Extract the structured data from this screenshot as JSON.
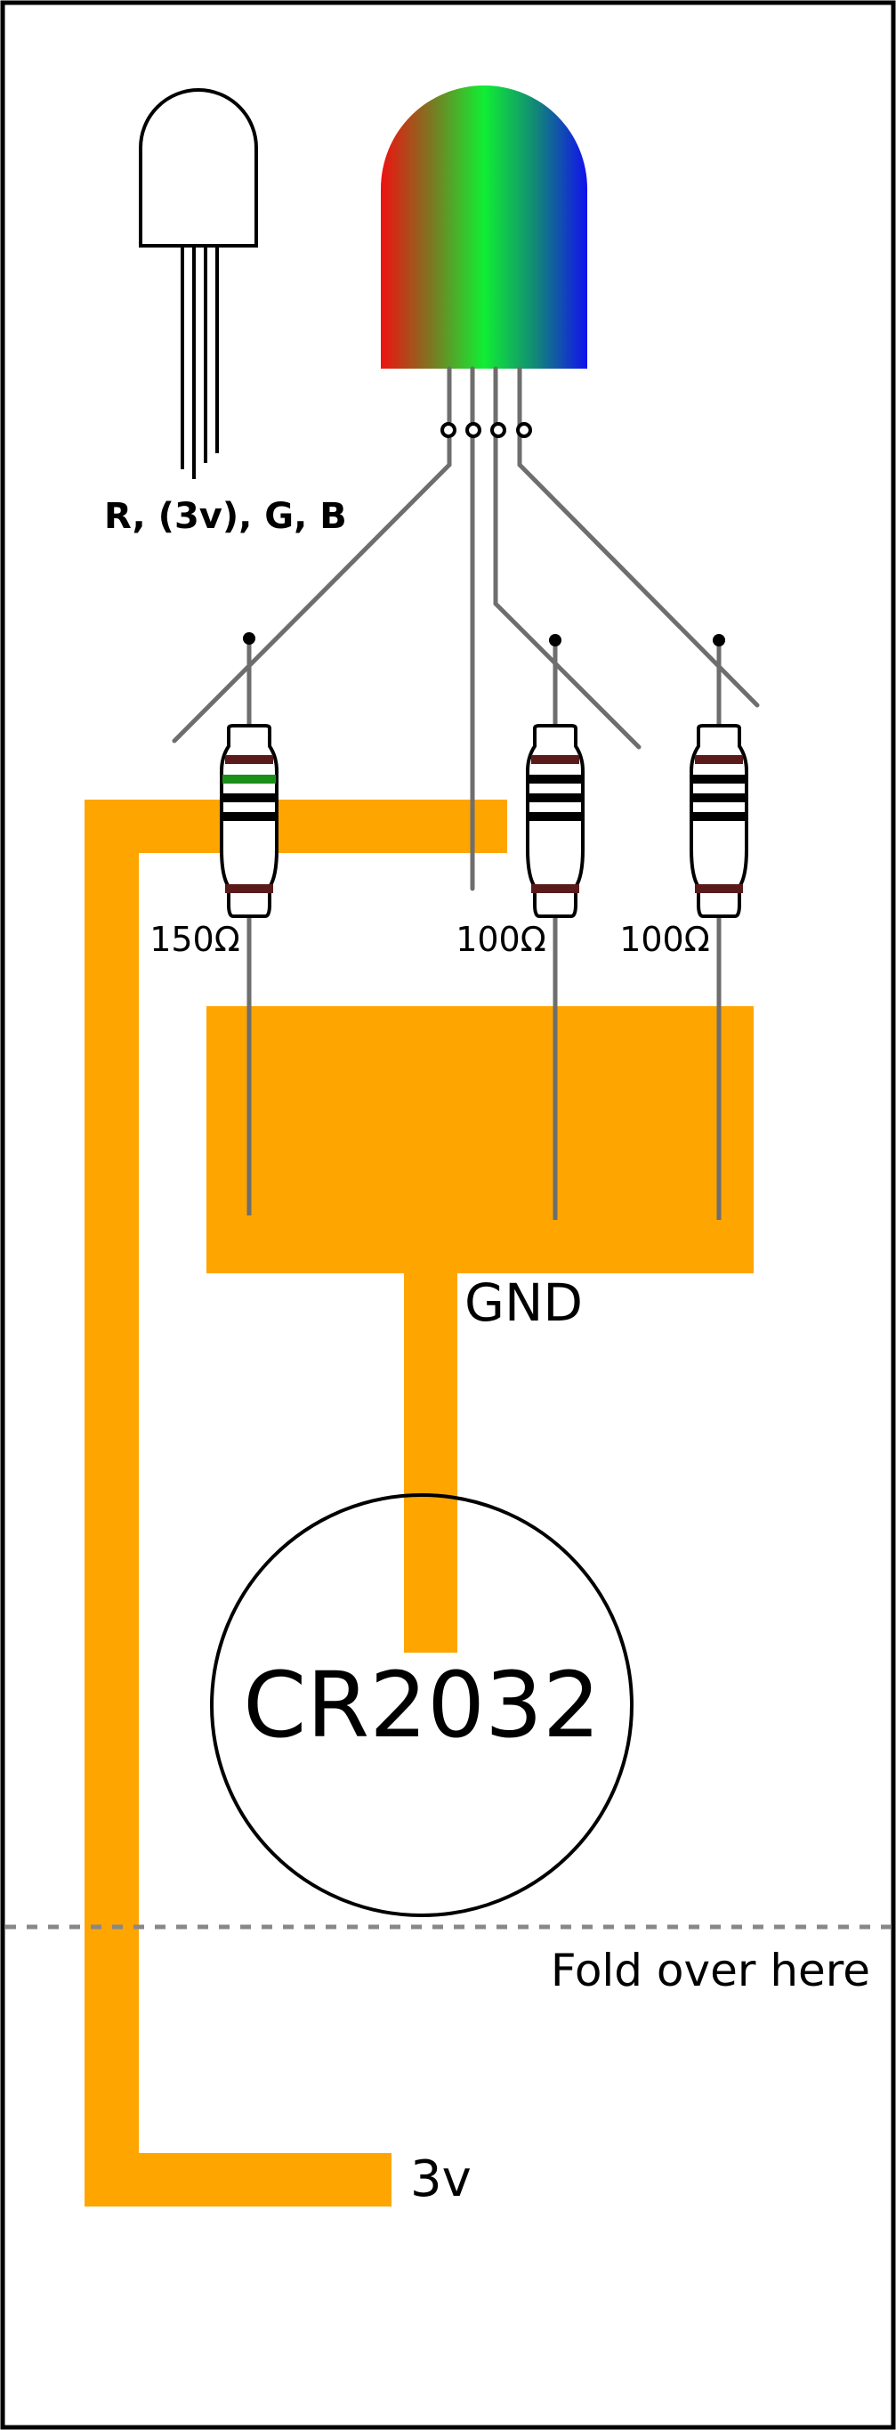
{
  "led_pin_label": "R, (3v), G, B",
  "resistors": [
    {
      "label": "150Ω",
      "bands": [
        "#5a1a1a",
        "#1a8f1a",
        "#000000",
        "#000000",
        "#5a1a1a"
      ]
    },
    {
      "label": "100Ω",
      "bands": [
        "#5a1a1a",
        "#000000",
        "#000000",
        "#000000",
        "#5a1a1a"
      ]
    },
    {
      "label": "100Ω",
      "bands": [
        "#5a1a1a",
        "#000000",
        "#000000",
        "#000000",
        "#5a1a1a"
      ]
    }
  ],
  "gnd_label": "GND",
  "battery_label": "CR2032",
  "fold_label": "Fold over here",
  "vcc_label": "3v",
  "colors": {
    "copper_tape": "#ffa500",
    "lead": "#6e6e6e",
    "outline": "#000000",
    "fold_line": "#888888",
    "led_red": "#ee1111",
    "led_green": "#11ee33",
    "led_blue": "#1111ee"
  }
}
